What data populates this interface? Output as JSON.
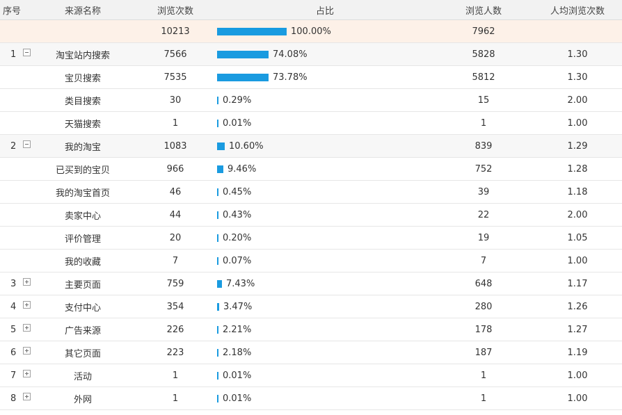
{
  "headers": {
    "idx": "序号",
    "source": "来源名称",
    "views": "浏览次数",
    "ratio": "占比",
    "visitors": "浏览人数",
    "avg": "人均浏览次数"
  },
  "colors": {
    "bar": "#1a9be0",
    "total_row_bg": "#fdf1e8",
    "group_row_bg": "#f7f7f7"
  },
  "total": {
    "views": "10213",
    "ratio": "100.00%",
    "ratio_value": 100.0,
    "visitors": "7962",
    "avg": ""
  },
  "rows": [
    {
      "idx": "1",
      "toggle": "minus-icon",
      "group": true,
      "source": "淘宝站内搜索",
      "views": "7566",
      "ratio": "74.08%",
      "ratio_value": 74.08,
      "visitors": "5828",
      "avg": "1.30"
    },
    {
      "idx": "",
      "toggle": "",
      "group": false,
      "source": "宝贝搜索",
      "views": "7535",
      "ratio": "73.78%",
      "ratio_value": 73.78,
      "visitors": "5812",
      "avg": "1.30"
    },
    {
      "idx": "",
      "toggle": "",
      "group": false,
      "source": "类目搜索",
      "views": "30",
      "ratio": "0.29%",
      "ratio_value": 0.29,
      "visitors": "15",
      "avg": "2.00"
    },
    {
      "idx": "",
      "toggle": "",
      "group": false,
      "source": "天猫搜索",
      "views": "1",
      "ratio": "0.01%",
      "ratio_value": 0.01,
      "visitors": "1",
      "avg": "1.00"
    },
    {
      "idx": "2",
      "toggle": "minus-icon",
      "group": true,
      "source": "我的淘宝",
      "views": "1083",
      "ratio": "10.60%",
      "ratio_value": 10.6,
      "visitors": "839",
      "avg": "1.29"
    },
    {
      "idx": "",
      "toggle": "",
      "group": false,
      "source": "已买到的宝贝",
      "views": "966",
      "ratio": "9.46%",
      "ratio_value": 9.46,
      "visitors": "752",
      "avg": "1.28"
    },
    {
      "idx": "",
      "toggle": "",
      "group": false,
      "source": "我的淘宝首页",
      "views": "46",
      "ratio": "0.45%",
      "ratio_value": 0.45,
      "visitors": "39",
      "avg": "1.18"
    },
    {
      "idx": "",
      "toggle": "",
      "group": false,
      "source": "卖家中心",
      "views": "44",
      "ratio": "0.43%",
      "ratio_value": 0.43,
      "visitors": "22",
      "avg": "2.00"
    },
    {
      "idx": "",
      "toggle": "",
      "group": false,
      "source": "评价管理",
      "views": "20",
      "ratio": "0.20%",
      "ratio_value": 0.2,
      "visitors": "19",
      "avg": "1.05"
    },
    {
      "idx": "",
      "toggle": "",
      "group": false,
      "source": "我的收藏",
      "views": "7",
      "ratio": "0.07%",
      "ratio_value": 0.07,
      "visitors": "7",
      "avg": "1.00"
    },
    {
      "idx": "3",
      "toggle": "plus-icon",
      "group": false,
      "source": "主要页面",
      "views": "759",
      "ratio": "7.43%",
      "ratio_value": 7.43,
      "visitors": "648",
      "avg": "1.17"
    },
    {
      "idx": "4",
      "toggle": "plus-icon",
      "group": false,
      "source": "支付中心",
      "views": "354",
      "ratio": "3.47%",
      "ratio_value": 3.47,
      "visitors": "280",
      "avg": "1.26"
    },
    {
      "idx": "5",
      "toggle": "plus-icon",
      "group": false,
      "source": "广告来源",
      "views": "226",
      "ratio": "2.21%",
      "ratio_value": 2.21,
      "visitors": "178",
      "avg": "1.27"
    },
    {
      "idx": "6",
      "toggle": "plus-icon",
      "group": false,
      "source": "其它页面",
      "views": "223",
      "ratio": "2.18%",
      "ratio_value": 2.18,
      "visitors": "187",
      "avg": "1.19"
    },
    {
      "idx": "7",
      "toggle": "plus-icon",
      "group": false,
      "source": "活动",
      "views": "1",
      "ratio": "0.01%",
      "ratio_value": 0.01,
      "visitors": "1",
      "avg": "1.00"
    },
    {
      "idx": "8",
      "toggle": "plus-icon",
      "group": false,
      "source": "外网",
      "views": "1",
      "ratio": "0.01%",
      "ratio_value": 0.01,
      "visitors": "1",
      "avg": "1.00"
    }
  ]
}
